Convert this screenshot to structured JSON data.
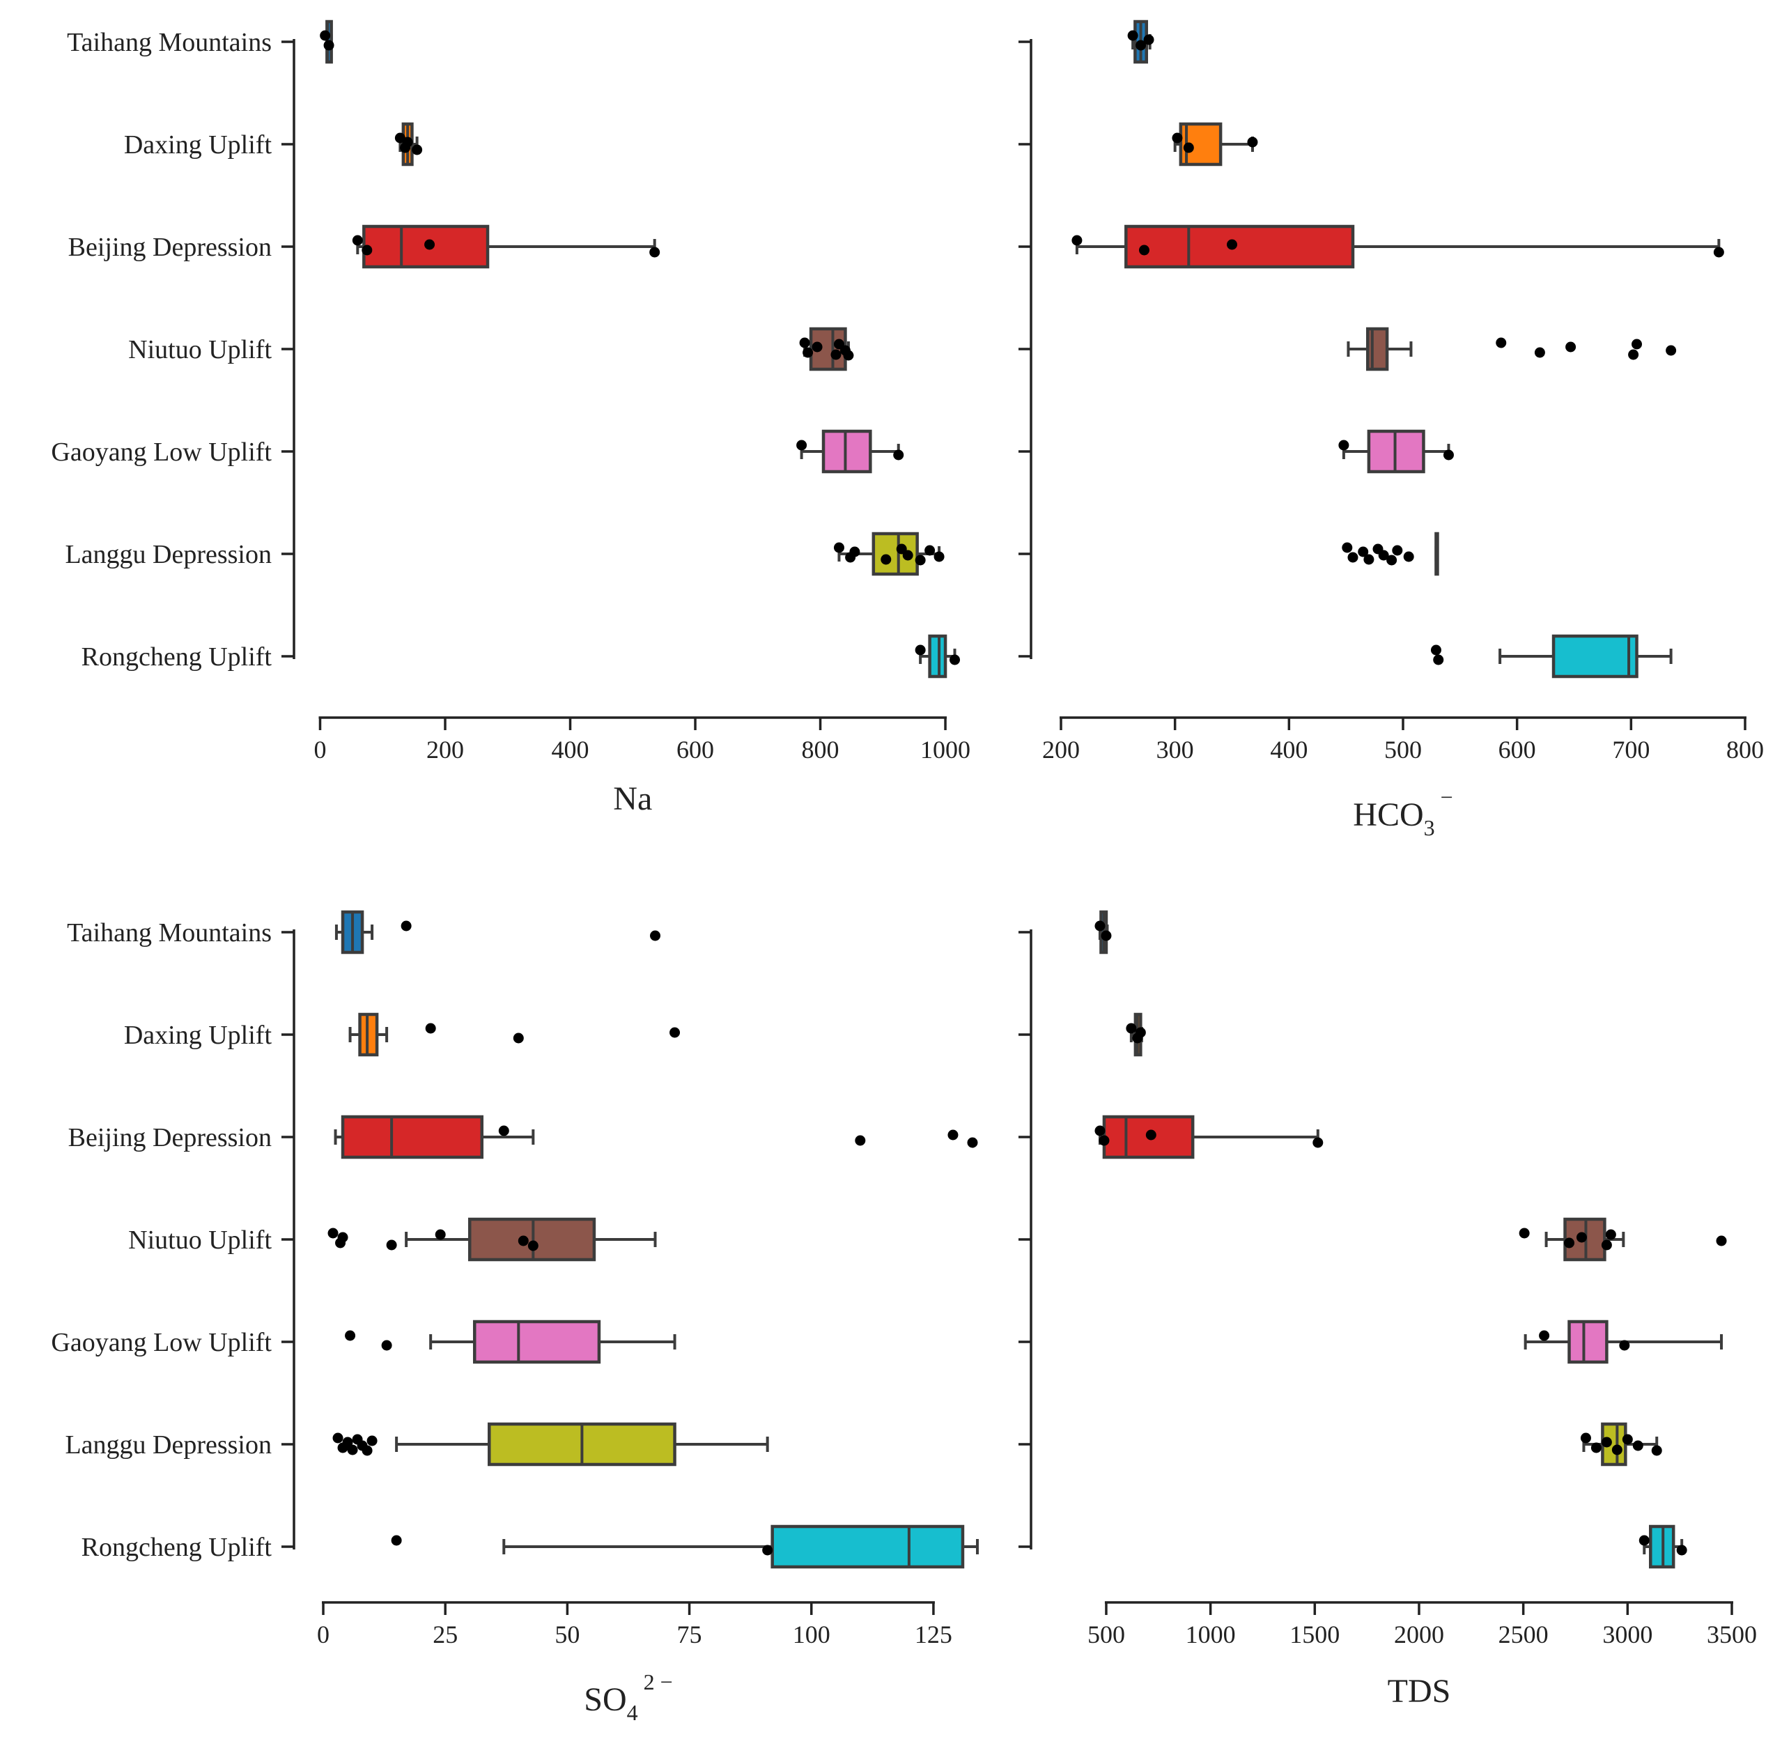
{
  "palette": {
    "Taihang Mountains": "#1f77b4",
    "Daxing Uplift": "#ff7f0e",
    "Beijing Depression": "#d62728",
    "Niutuo Uplift": "#8c564b",
    "Gaoyang Low Uplift": "#e377c2",
    "Langgu Depression": "#bcbd22",
    "Rongcheng Uplift": "#17becf"
  },
  "chart_data": [
    {
      "type": "box",
      "xlabel_main": "Na",
      "xlabel_sub": "",
      "xlabel_sup": "",
      "xlim": [
        -5,
        1020
      ],
      "xticks": [
        0,
        200,
        400,
        600,
        800,
        1000
      ],
      "categories": [
        "Taihang Mountains",
        "Daxing Uplift",
        "Beijing Depression",
        "Niutuo Uplift",
        "Gaoyang Low Uplift",
        "Langgu Depression",
        "Rongcheng Uplift"
      ],
      "boxes": [
        {
          "wlo": 11,
          "q1": 11,
          "med": 12,
          "q3": 18,
          "whi": 18,
          "points": [
            8,
            14
          ]
        },
        {
          "wlo": 128,
          "q1": 133,
          "med": 140,
          "q3": 147,
          "whi": 155,
          "points": [
            128,
            136,
            140,
            155
          ]
        },
        {
          "wlo": 60,
          "q1": 70,
          "med": 130,
          "q3": 268,
          "whi": 535,
          "points": [
            60,
            75,
            175,
            535
          ]
        },
        {
          "wlo": 775,
          "q1": 785,
          "med": 820,
          "q3": 840,
          "whi": 845,
          "points": [
            775,
            780,
            795,
            825,
            830,
            840,
            845
          ]
        },
        {
          "wlo": 770,
          "q1": 805,
          "med": 840,
          "q3": 880,
          "whi": 925,
          "points": [
            770,
            925
          ]
        },
        {
          "wlo": 830,
          "q1": 885,
          "med": 925,
          "q3": 955,
          "whi": 990,
          "points": [
            830,
            848,
            855,
            905,
            930,
            940,
            960,
            975,
            990
          ]
        },
        {
          "wlo": 960,
          "q1": 975,
          "med": 990,
          "q3": 1000,
          "whi": 1015,
          "points": [
            960,
            1015
          ]
        }
      ]
    },
    {
      "type": "box",
      "xlabel_main": "HCO",
      "xlabel_sub": "3",
      "xlabel_sup": "−",
      "xlim": [
        200,
        800
      ],
      "xticks": [
        200,
        300,
        400,
        500,
        600,
        700,
        800
      ],
      "categories": [
        "Taihang Mountains",
        "Daxing Uplift",
        "Beijing Depression",
        "Niutuo Uplift",
        "Gaoyang Low Uplift",
        "Langgu Depression",
        "Rongcheng Uplift"
      ],
      "boxes": [
        {
          "wlo": 263,
          "q1": 265,
          "med": 270,
          "q3": 275,
          "whi": 278,
          "points": [
            263,
            270,
            277
          ]
        },
        {
          "wlo": 300,
          "q1": 305,
          "med": 310,
          "q3": 340,
          "whi": 368,
          "points": [
            302,
            312,
            368
          ]
        },
        {
          "wlo": 214,
          "q1": 257,
          "med": 312,
          "q3": 456,
          "whi": 777,
          "points": [
            214,
            273,
            350,
            777
          ]
        },
        {
          "wlo": 452,
          "q1": 469,
          "med": 473,
          "q3": 486,
          "whi": 507,
          "points": [
            586,
            620,
            647,
            702,
            705,
            735
          ]
        },
        {
          "wlo": 448,
          "q1": 470,
          "med": 493,
          "q3": 518,
          "whi": 540,
          "points": [
            448,
            540
          ]
        },
        {
          "wlo": 529,
          "q1": 529,
          "med": 529,
          "q3": 529,
          "whi": 529,
          "points": [
            451,
            456,
            465,
            470,
            478,
            483,
            490,
            495,
            505
          ]
        },
        {
          "wlo": 585,
          "q1": 632,
          "med": 698,
          "q3": 705,
          "whi": 735,
          "points": [
            529,
            531
          ]
        }
      ]
    },
    {
      "type": "box",
      "xlabel_main": "SO",
      "xlabel_sub": "4",
      "xlabel_sup": "2 −",
      "xlim": [
        -2,
        135
      ],
      "xticks": [
        0,
        25,
        50,
        75,
        100,
        125
      ],
      "categories": [
        "Taihang Mountains",
        "Daxing Uplift",
        "Beijing Depression",
        "Niutuo Uplift",
        "Gaoyang Low Uplift",
        "Langgu Depression",
        "Rongcheng Uplift"
      ],
      "boxes": [
        {
          "wlo": 2.7,
          "q1": 4,
          "med": 6,
          "q3": 8,
          "whi": 10,
          "points": [
            17,
            68
          ]
        },
        {
          "wlo": 5.5,
          "q1": 7.5,
          "med": 9,
          "q3": 11,
          "whi": 13,
          "points": [
            22,
            40,
            72
          ]
        },
        {
          "wlo": 2.5,
          "q1": 4,
          "med": 14,
          "q3": 32.5,
          "whi": 43,
          "points": [
            37,
            110,
            129,
            133
          ]
        },
        {
          "wlo": 17,
          "q1": 30,
          "med": 43,
          "q3": 55.5,
          "whi": 68,
          "points": [
            2,
            3.5,
            4,
            14,
            24,
            41,
            43
          ]
        },
        {
          "wlo": 22,
          "q1": 31,
          "med": 40,
          "q3": 56.5,
          "whi": 72,
          "points": [
            5.5,
            13
          ]
        },
        {
          "wlo": 15,
          "q1": 34,
          "med": 53,
          "q3": 72,
          "whi": 91,
          "points": [
            3,
            4,
            5,
            6,
            7,
            8,
            9,
            10
          ]
        },
        {
          "wlo": 37,
          "q1": 92,
          "med": 120,
          "q3": 131,
          "whi": 134,
          "points": [
            15,
            91
          ]
        }
      ]
    },
    {
      "type": "box",
      "xlabel_main": "TDS",
      "xlabel_sub": "",
      "xlabel_sup": "",
      "xlim": [
        420,
        3500
      ],
      "xticks": [
        500,
        1000,
        1500,
        2000,
        2500,
        3000,
        3500
      ],
      "categories": [
        "Taihang Mountains",
        "Daxing Uplift",
        "Beijing Depression",
        "Niutuo Uplift",
        "Gaoyang Low Uplift",
        "Langgu Depression",
        "Rongcheng Uplift"
      ],
      "boxes": [
        {
          "wlo": 470,
          "q1": 475,
          "med": 490,
          "q3": 500,
          "whi": 505,
          "points": [
            470,
            500
          ]
        },
        {
          "wlo": 620,
          "q1": 640,
          "med": 650,
          "q3": 665,
          "whi": 670,
          "points": [
            620,
            650,
            665
          ]
        },
        {
          "wlo": 470,
          "q1": 490,
          "med": 595,
          "q3": 915,
          "whi": 1515,
          "points": [
            470,
            490,
            715,
            1515
          ]
        },
        {
          "wlo": 2610,
          "q1": 2700,
          "med": 2800,
          "q3": 2890,
          "whi": 2980,
          "points": [
            2505,
            2720,
            2780,
            2900,
            2920,
            3450
          ]
        },
        {
          "wlo": 2510,
          "q1": 2720,
          "med": 2790,
          "q3": 2900,
          "whi": 3450,
          "points": [
            2600,
            2985
          ]
        },
        {
          "wlo": 2790,
          "q1": 2880,
          "med": 2950,
          "q3": 2990,
          "whi": 3140,
          "points": [
            2800,
            2850,
            2900,
            2950,
            3000,
            3050,
            3140
          ]
        },
        {
          "wlo": 3080,
          "q1": 3110,
          "med": 3170,
          "q3": 3220,
          "whi": 3260,
          "points": [
            3080,
            3260
          ]
        }
      ]
    }
  ]
}
